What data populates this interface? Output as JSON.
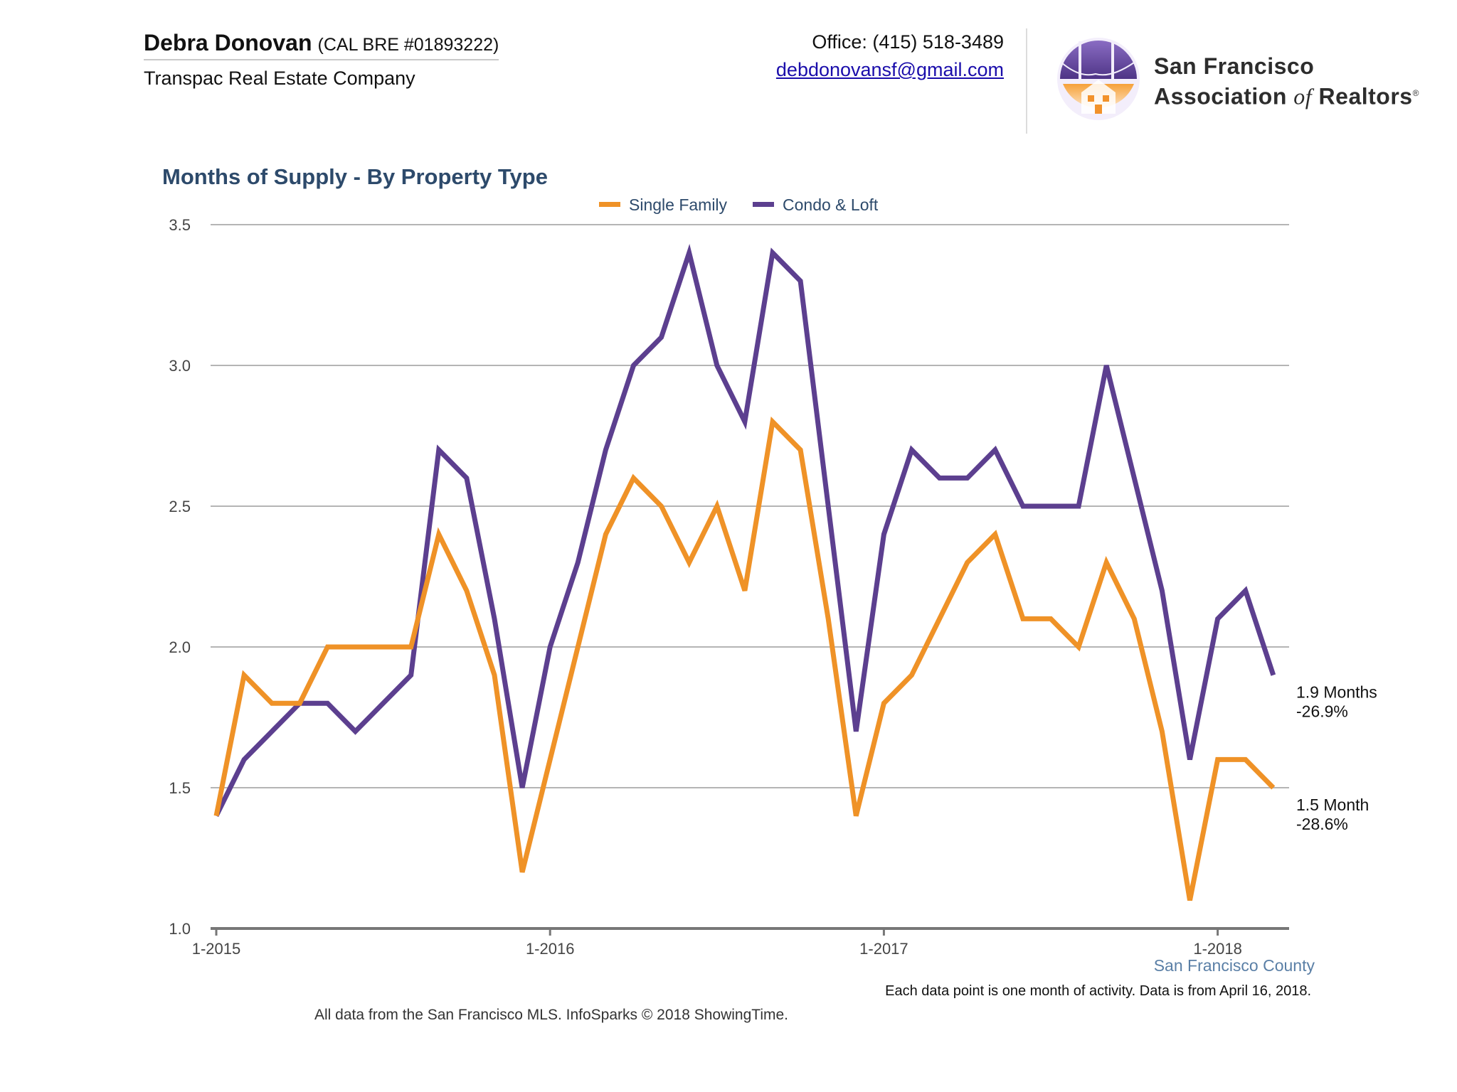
{
  "header": {
    "agent_name": "Debra Donovan",
    "agent_license": "(CAL BRE #01893222)",
    "company": "Transpac Real Estate Company",
    "office_phone": "Office: (415) 518-3489",
    "email": "debdonovansf@gmail.com"
  },
  "logo": {
    "line1": "San Francisco",
    "line2_a": "Association",
    "line2_of": "of",
    "line2_b": "Realtors",
    "registered": "®",
    "icon": "golden-gate-bridge-house-icon",
    "colors": {
      "purple": "#6b4fa0",
      "orange": "#f2922b"
    }
  },
  "chart_data": {
    "type": "line",
    "title": "Months of Supply - By Property Type",
    "xlabel": "",
    "ylabel": "",
    "ylim": [
      1.0,
      3.5
    ],
    "yticks": [
      "1.0",
      "1.5",
      "2.0",
      "2.5",
      "3.0",
      "3.5"
    ],
    "xticks": [
      {
        "label": "1-2015",
        "index": 0
      },
      {
        "label": "1-2016",
        "index": 12
      },
      {
        "label": "1-2017",
        "index": 24
      },
      {
        "label": "1-2018",
        "index": 36
      }
    ],
    "grid": true,
    "legend": "top-center",
    "x": [
      "1-2015",
      "2-2015",
      "3-2015",
      "4-2015",
      "5-2015",
      "6-2015",
      "7-2015",
      "8-2015",
      "9-2015",
      "10-2015",
      "11-2015",
      "12-2015",
      "1-2016",
      "2-2016",
      "3-2016",
      "4-2016",
      "5-2016",
      "6-2016",
      "7-2016",
      "8-2016",
      "9-2016",
      "10-2016",
      "11-2016",
      "12-2016",
      "1-2017",
      "2-2017",
      "3-2017",
      "4-2017",
      "5-2017",
      "6-2017",
      "7-2017",
      "8-2017",
      "9-2017",
      "10-2017",
      "11-2017",
      "12-2017",
      "1-2018",
      "2-2018",
      "3-2018"
    ],
    "series": [
      {
        "name": "Single Family",
        "color": "#ef9227",
        "values": [
          1.4,
          1.9,
          1.8,
          1.8,
          2.0,
          2.0,
          2.0,
          2.0,
          2.4,
          2.2,
          1.9,
          1.2,
          1.6,
          2.0,
          2.4,
          2.6,
          2.5,
          2.3,
          2.5,
          2.2,
          2.8,
          2.7,
          2.1,
          1.4,
          1.8,
          1.9,
          2.1,
          2.3,
          2.4,
          2.1,
          2.1,
          2.0,
          2.3,
          2.1,
          1.7,
          1.1,
          1.6,
          1.6,
          1.5
        ]
      },
      {
        "name": "Condo & Loft",
        "color": "#5c3f8f",
        "values": [
          1.4,
          1.6,
          1.7,
          1.8,
          1.8,
          1.7,
          1.8,
          1.9,
          2.7,
          2.6,
          2.1,
          1.5,
          2.0,
          2.3,
          2.7,
          3.0,
          3.1,
          3.4,
          3.0,
          2.8,
          3.4,
          3.3,
          2.5,
          1.7,
          2.4,
          2.7,
          2.6,
          2.6,
          2.7,
          2.5,
          2.5,
          2.5,
          3.0,
          2.6,
          2.2,
          1.6,
          2.1,
          2.2,
          1.9
        ]
      }
    ],
    "annotations": [
      {
        "line1": "1.9 Months",
        "line2": "-26.9%",
        "anchor_value": 1.9
      },
      {
        "line1": "1.5 Month",
        "line2": "-28.6%",
        "anchor_value": 1.5
      }
    ],
    "region": "San Francisco County",
    "note": "Each data point is one month of activity. Data is from April 16, 2018."
  },
  "footer": "All data from the San Francisco MLS. InfoSparks © 2018 ShowingTime."
}
